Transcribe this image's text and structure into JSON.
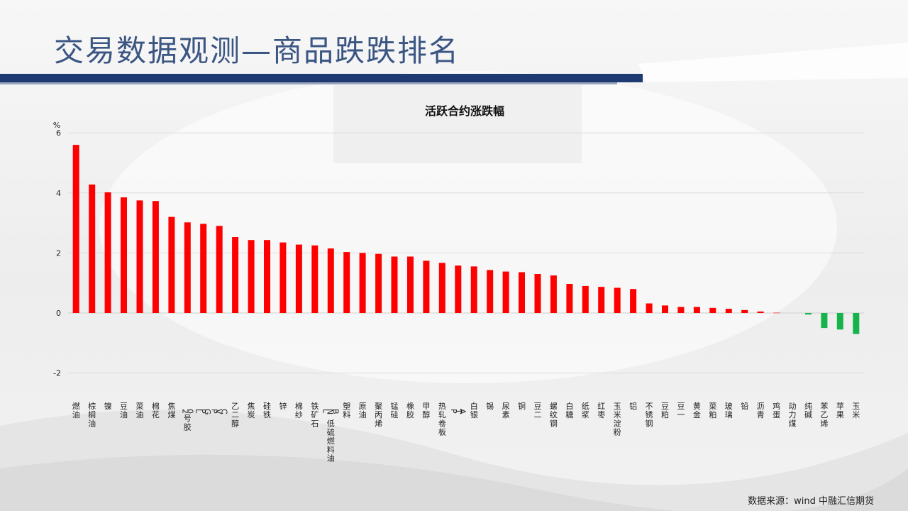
{
  "page": {
    "title": "交易数据观测—商品跌跌排名",
    "source_note": "数据来源：wind 中融汇信期货"
  },
  "colors": {
    "positive": "#ff0000",
    "negative": "#16b24c",
    "title_blue": "#3b5683",
    "bar_navy": "#1d3a72"
  },
  "chart_data": {
    "type": "bar",
    "title": "活跃合约涨跌幅",
    "ylabel": "%",
    "xlabel": "",
    "ylim": [
      -2.6,
      6
    ],
    "yticks": [
      6,
      4,
      2,
      0,
      -2
    ],
    "grid": true,
    "categories": [
      "燃油",
      "棕榈油",
      "镍",
      "豆油",
      "菜油",
      "棉花",
      "焦煤",
      "20号胶",
      "LPG",
      "PVC",
      "乙二醇",
      "焦炭",
      "硅铁",
      "锌",
      "棉纱",
      "铁矿石",
      "LNB低硫燃料油",
      "塑料",
      "原油",
      "聚丙烯",
      "锰硅",
      "橡胶",
      "甲醇",
      "热轧卷板",
      "PTA",
      "白银",
      "锡",
      "尿素",
      "铜",
      "豆二",
      "螺纹钢",
      "白糖",
      "纸浆",
      "红枣",
      "玉米淀粉",
      "铝",
      "不锈钢",
      "豆粕",
      "豆一",
      "黄金",
      "菜粕",
      "玻璃",
      "铅",
      "沥青",
      "鸡蛋",
      "动力煤",
      "纯碱",
      "苯乙烯",
      "苹果",
      "玉米"
    ],
    "values": [
      5.6,
      4.28,
      4.02,
      3.85,
      3.75,
      3.73,
      3.2,
      3.02,
      2.97,
      2.9,
      2.53,
      2.43,
      2.43,
      2.35,
      2.28,
      2.25,
      2.15,
      2.03,
      2.0,
      1.97,
      1.88,
      1.88,
      1.74,
      1.67,
      1.58,
      1.55,
      1.43,
      1.38,
      1.36,
      1.3,
      1.25,
      0.97,
      0.9,
      0.87,
      0.84,
      0.8,
      0.32,
      0.25,
      0.2,
      0.2,
      0.17,
      0.14,
      0.1,
      0.05,
      0.01,
      0.0,
      -0.05,
      -0.5,
      -0.55,
      -0.7
    ]
  }
}
